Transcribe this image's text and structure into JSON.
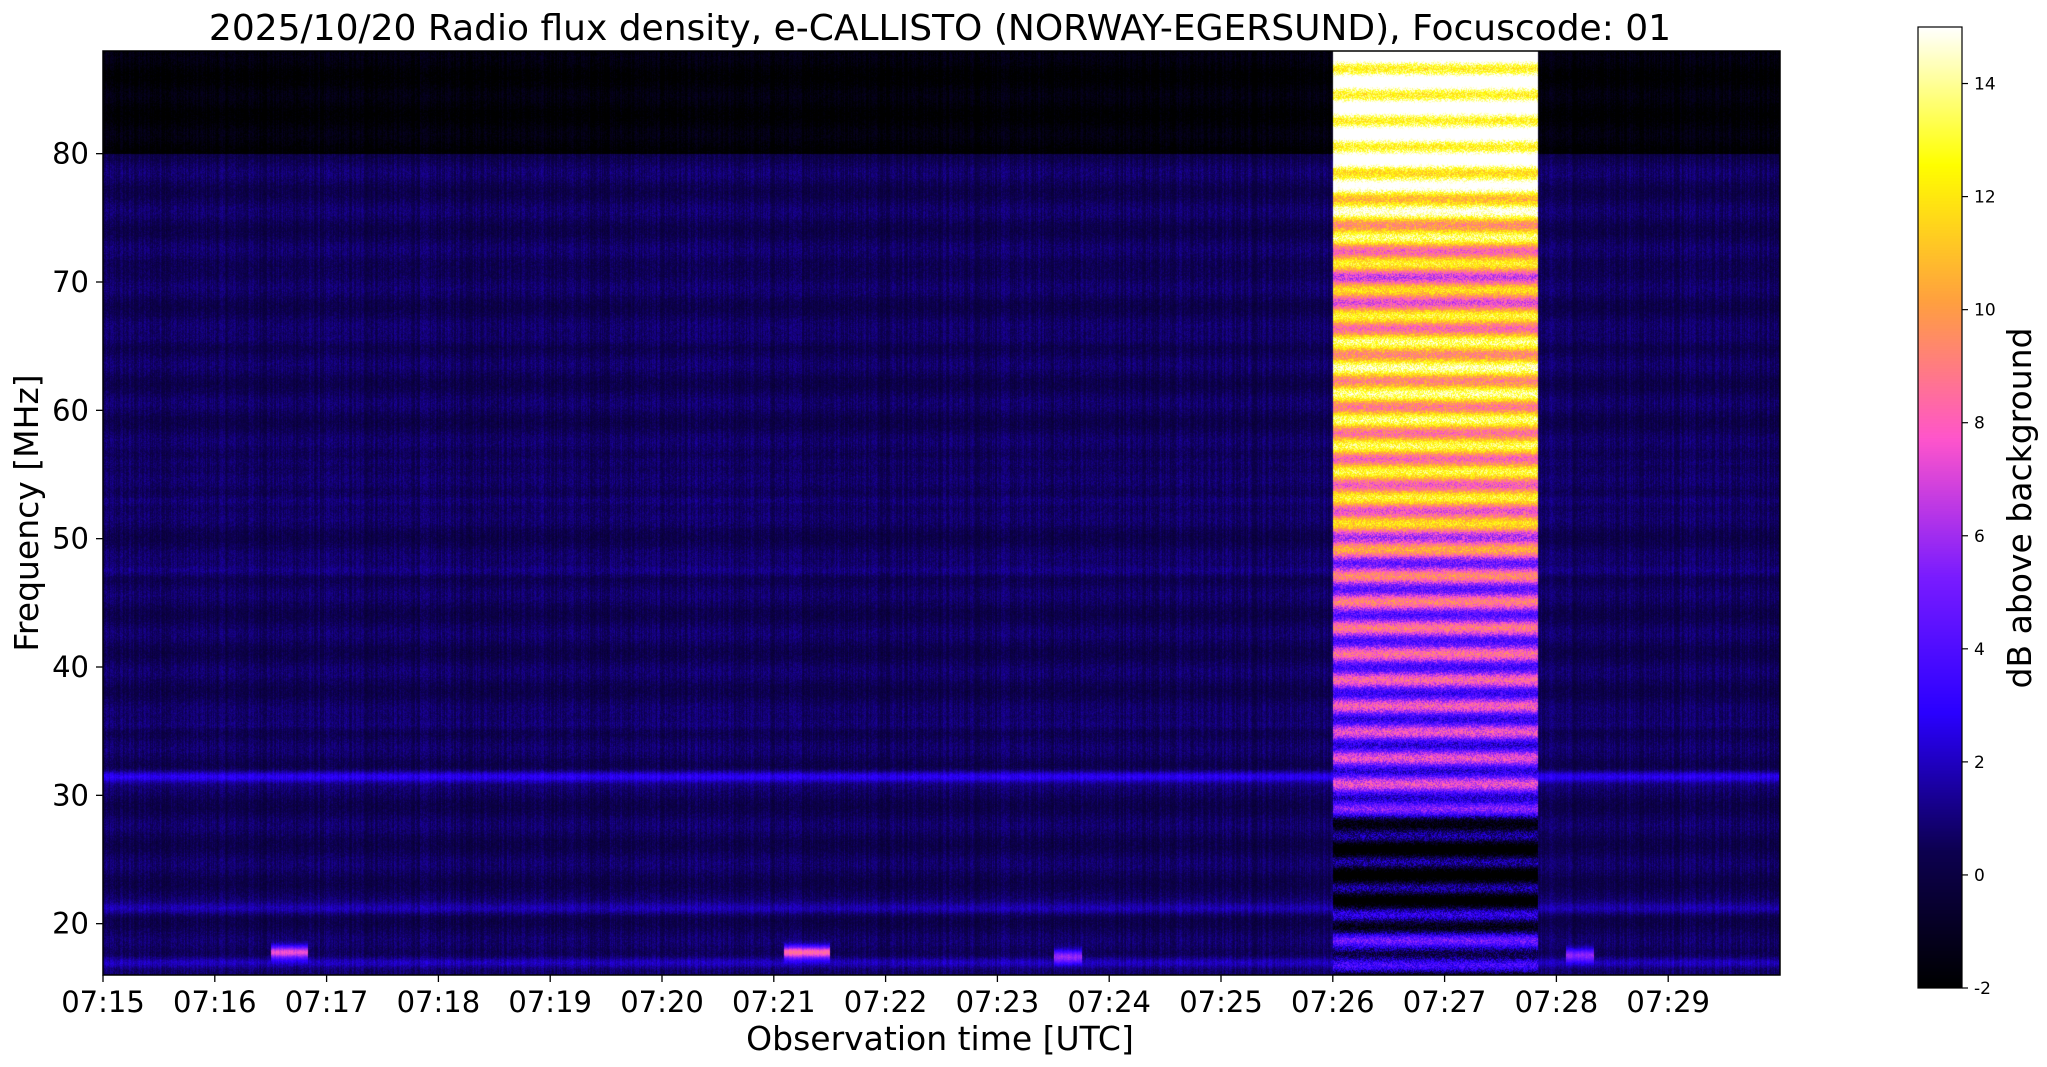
{
  "chart_data": {
    "type": "heatmap",
    "title": "2025/10/20  Radio flux density, e-CALLISTO (NORWAY-EGERSUND), Focuscode: 01",
    "xlabel": "Observation time [UTC]",
    "ylabel": "Frequency [MHz]",
    "colorbar_label": "dB above background",
    "colormap": "gnuplot2",
    "colormap_stops": [
      "#000000",
      "#0d0050",
      "#2a00ff",
      "#7a1cff",
      "#ff55cc",
      "#ffa040",
      "#ffff00",
      "#ffffff"
    ],
    "x_ticks": [
      "07:15",
      "07:16",
      "07:17",
      "07:18",
      "07:19",
      "07:20",
      "07:21",
      "07:22",
      "07:23",
      "07:24",
      "07:25",
      "07:26",
      "07:27",
      "07:28",
      "07:29"
    ],
    "x_range_minutes_after_0715": [
      0,
      15
    ],
    "y_ticks": [
      20,
      30,
      40,
      50,
      60,
      70,
      80
    ],
    "y_range": [
      16,
      88
    ],
    "colorbar_ticks": [
      -2,
      0,
      2,
      4,
      6,
      8,
      10,
      12,
      14
    ],
    "color_range": [
      -2,
      15
    ],
    "background_level_db": 0.5,
    "quiet_above_mhz": 80,
    "interference_bands_mhz": [
      {
        "freq": 31.5,
        "level_db": 2.8
      },
      {
        "freq": 21.2,
        "level_db": 1.6
      },
      {
        "freq": 17.0,
        "level_db": 2.2
      },
      {
        "freq": 47.5,
        "level_db": 1.3
      },
      {
        "freq": 35.5,
        "level_db": 1.1
      },
      {
        "freq": 53.0,
        "level_db": 1.2
      },
      {
        "freq": 56.0,
        "level_db": 1.0
      },
      {
        "freq": 65.5,
        "level_db": 0.9
      },
      {
        "freq": 71.0,
        "level_db": 0.7
      }
    ],
    "low_freq_patches": [
      {
        "start": "07:16:30",
        "end": "07:16:50",
        "freq": 17.8,
        "level_db": 8
      },
      {
        "start": "07:21:05",
        "end": "07:21:30",
        "freq": 17.8,
        "level_db": 9
      },
      {
        "start": "07:23:30",
        "end": "07:23:45",
        "freq": 17.5,
        "level_db": 6
      },
      {
        "start": "07:28:05",
        "end": "07:28:20",
        "freq": 17.6,
        "level_db": 6
      }
    ],
    "burst": {
      "start": "07:26:00",
      "end": "07:27:50",
      "level_by_freq": [
        {
          "freq": 88,
          "level_db": 15
        },
        {
          "freq": 80,
          "level_db": 15
        },
        {
          "freq": 76,
          "level_db": 13
        },
        {
          "freq": 70,
          "level_db": 9
        },
        {
          "freq": 64,
          "level_db": 12
        },
        {
          "freq": 58,
          "level_db": 11
        },
        {
          "freq": 52,
          "level_db": 10
        },
        {
          "freq": 48,
          "level_db": 7
        },
        {
          "freq": 40,
          "level_db": 6
        },
        {
          "freq": 34,
          "level_db": 5
        },
        {
          "freq": 30,
          "level_db": 5
        },
        {
          "freq": 27,
          "level_db": -1
        },
        {
          "freq": 22,
          "level_db": -1
        },
        {
          "freq": 18,
          "level_db": 3
        },
        {
          "freq": 16,
          "level_db": 0
        }
      ]
    }
  }
}
